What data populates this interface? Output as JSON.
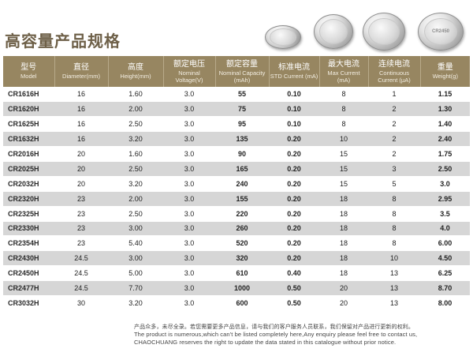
{
  "title": "高容量产品规格",
  "photo_labels": [
    "",
    "",
    "",
    "CR2450"
  ],
  "table": {
    "headers": [
      {
        "zh": "型号",
        "en": "Model"
      },
      {
        "zh": "直径",
        "en": "Diameter(mm)"
      },
      {
        "zh": "高度",
        "en": "Height(mm)"
      },
      {
        "zh": "额定电压",
        "en": "Nominal Voltage(V)"
      },
      {
        "zh": "额定容量",
        "en": "Nominal Capacity (mAh)"
      },
      {
        "zh": "标准电流",
        "en": "STD Current (mA)"
      },
      {
        "zh": "最大电流",
        "en": "Max Current (mA)"
      },
      {
        "zh": "连续电流",
        "en": "Continuous Current (μA)"
      },
      {
        "zh": "重量",
        "en": "Weight(g)"
      }
    ],
    "rows": [
      [
        "CR1616H",
        "16",
        "1.60",
        "3.0",
        "55",
        "0.10",
        "8",
        "1",
        "1.15"
      ],
      [
        "CR1620H",
        "16",
        "2.00",
        "3.0",
        "75",
        "0.10",
        "8",
        "2",
        "1.30"
      ],
      [
        "CR1625H",
        "16",
        "2.50",
        "3.0",
        "95",
        "0.10",
        "8",
        "2",
        "1.40"
      ],
      [
        "CR1632H",
        "16",
        "3.20",
        "3.0",
        "135",
        "0.20",
        "10",
        "2",
        "2.40"
      ],
      [
        "CR2016H",
        "20",
        "1.60",
        "3.0",
        "90",
        "0.20",
        "15",
        "2",
        "1.75"
      ],
      [
        "CR2025H",
        "20",
        "2.50",
        "3.0",
        "165",
        "0.20",
        "15",
        "3",
        "2.50"
      ],
      [
        "CR2032H",
        "20",
        "3.20",
        "3.0",
        "240",
        "0.20",
        "15",
        "5",
        "3.0"
      ],
      [
        "CR2320H",
        "23",
        "2.00",
        "3.0",
        "155",
        "0.20",
        "18",
        "8",
        "2.95"
      ],
      [
        "CR2325H",
        "23",
        "2.50",
        "3.0",
        "220",
        "0.20",
        "18",
        "8",
        "3.5"
      ],
      [
        "CR2330H",
        "23",
        "3.00",
        "3.0",
        "260",
        "0.20",
        "18",
        "8",
        "4.0"
      ],
      [
        "CR2354H",
        "23",
        "5.40",
        "3.0",
        "520",
        "0.20",
        "18",
        "8",
        "6.00"
      ],
      [
        "CR2430H",
        "24.5",
        "3.00",
        "3.0",
        "320",
        "0.20",
        "18",
        "10",
        "4.50"
      ],
      [
        "CR2450H",
        "24.5",
        "5.00",
        "3.0",
        "610",
        "0.40",
        "18",
        "13",
        "6.25"
      ],
      [
        "CR2477H",
        "24.5",
        "7.70",
        "3.0",
        "1000",
        "0.50",
        "20",
        "13",
        "8.70"
      ],
      [
        "CR3032H",
        "30",
        "3.20",
        "3.0",
        "600",
        "0.50",
        "20",
        "13",
        "8.00"
      ]
    ]
  },
  "footer": {
    "zh": "产品众多，未尽全录。若您需要更多产品信息，请与我们的客户服务人员联系，我们保留对产品进行更新的权利。",
    "en1": "The product is numerous,which can't be listed completely here,Any enquiry please feel free to contact us,",
    "en2": "CHAOCHUANG reserves the right to update the data stated in this catalogue without prior notice."
  }
}
